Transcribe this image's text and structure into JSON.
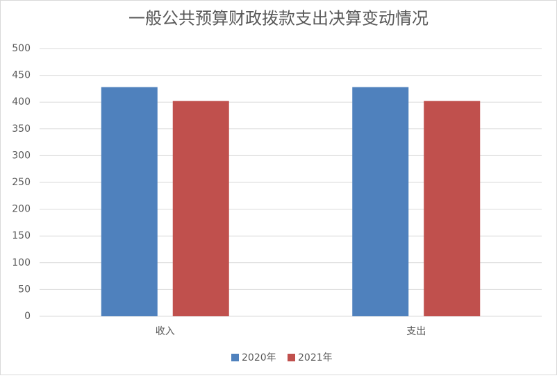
{
  "chart_data": {
    "type": "bar",
    "title": "一般公共预算财政拨款支出决算变动情况",
    "categories": [
      "收入",
      "支出"
    ],
    "series": [
      {
        "name": "2020年",
        "color": "#4f81bd",
        "values": [
          428,
          428
        ]
      },
      {
        "name": "2021年",
        "color": "#c0504d",
        "values": [
          402,
          402
        ]
      }
    ],
    "ylim": [
      0,
      500
    ],
    "yticks": [
      0,
      50,
      100,
      150,
      200,
      250,
      300,
      350,
      400,
      450,
      500
    ],
    "grid": true,
    "legend": "bottom"
  }
}
